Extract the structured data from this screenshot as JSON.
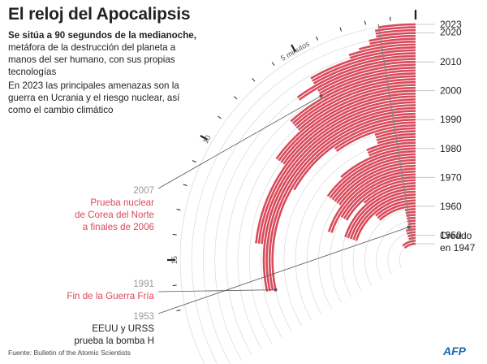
{
  "title": "El reloj del Apocalipsis",
  "subtitle_bold": "Se sitúa a 90 segundos de la medianoche,",
  "subtitle_rest": "metáfora de la destrucción del planeta a manos del ser humano, con sus propias tecnologías",
  "description": "En 2023 las principales amenazas son la guerra en Ucrania y el riesgo nuclear, así como el cambio climático",
  "source": "Fuente: Bulletin of the Atomic Scientists",
  "logo": "AFP",
  "colors": {
    "accent": "#d94a5a",
    "grid": "#dddddd",
    "text": "#222222",
    "muted": "#9a9a9a",
    "logo": "#1a66b3"
  },
  "dial": {
    "minute_label": "5 minutos",
    "minute_10": "10",
    "minute_15": "15"
  },
  "annotations": [
    {
      "year": "2007",
      "text": [
        "Prueba nuclear",
        "de Corea del Norte",
        "a finales de 2006"
      ],
      "color": "#d94a5a"
    },
    {
      "year": "1991",
      "text": [
        "Fin de la Guerra Fría"
      ],
      "color": "#d94a5a"
    },
    {
      "year": "1953",
      "text": [
        "EEUU y URSS",
        "prueba la bomba H"
      ],
      "color": "#222222"
    }
  ],
  "chart_data": {
    "type": "radial-bar",
    "title": "El reloj del Apocalipsis",
    "unit": "minutes to midnight",
    "year_labels": [
      "2023",
      "2020",
      "2010",
      "2000",
      "1990",
      "1980",
      "1970",
      "1960",
      "1950",
      "Creado en 1947"
    ],
    "series": [
      {
        "values": [
          {
            "year": 1947,
            "minutes": 7
          },
          {
            "year": 1949,
            "minutes": 3
          },
          {
            "year": 1953,
            "minutes": 2
          },
          {
            "year": 1960,
            "minutes": 7
          },
          {
            "year": 1963,
            "minutes": 12
          },
          {
            "year": 1968,
            "minutes": 7
          },
          {
            "year": 1969,
            "minutes": 10
          },
          {
            "year": 1972,
            "minutes": 12
          },
          {
            "year": 1974,
            "minutes": 9
          },
          {
            "year": 1980,
            "minutes": 7
          },
          {
            "year": 1981,
            "minutes": 4
          },
          {
            "year": 1984,
            "minutes": 3
          },
          {
            "year": 1988,
            "minutes": 6
          },
          {
            "year": 1990,
            "minutes": 10
          },
          {
            "year": 1991,
            "minutes": 17
          },
          {
            "year": 1995,
            "minutes": 14
          },
          {
            "year": 1998,
            "minutes": 9
          },
          {
            "year": 2002,
            "minutes": 7
          },
          {
            "year": 2007,
            "minutes": 5
          },
          {
            "year": 2010,
            "minutes": 6
          },
          {
            "year": 2012,
            "minutes": 5
          },
          {
            "year": 2015,
            "minutes": 3
          },
          {
            "year": 2017,
            "minutes": 2.5
          },
          {
            "year": 2018,
            "minutes": 2
          },
          {
            "year": 2020,
            "minutes": 1.67
          },
          {
            "year": 2021,
            "minutes": 1.67
          },
          {
            "year": 2022,
            "minutes": 1.67
          },
          {
            "year": 2023,
            "minutes": 1.5
          }
        ]
      }
    ],
    "year_range": [
      1947,
      2023
    ]
  }
}
